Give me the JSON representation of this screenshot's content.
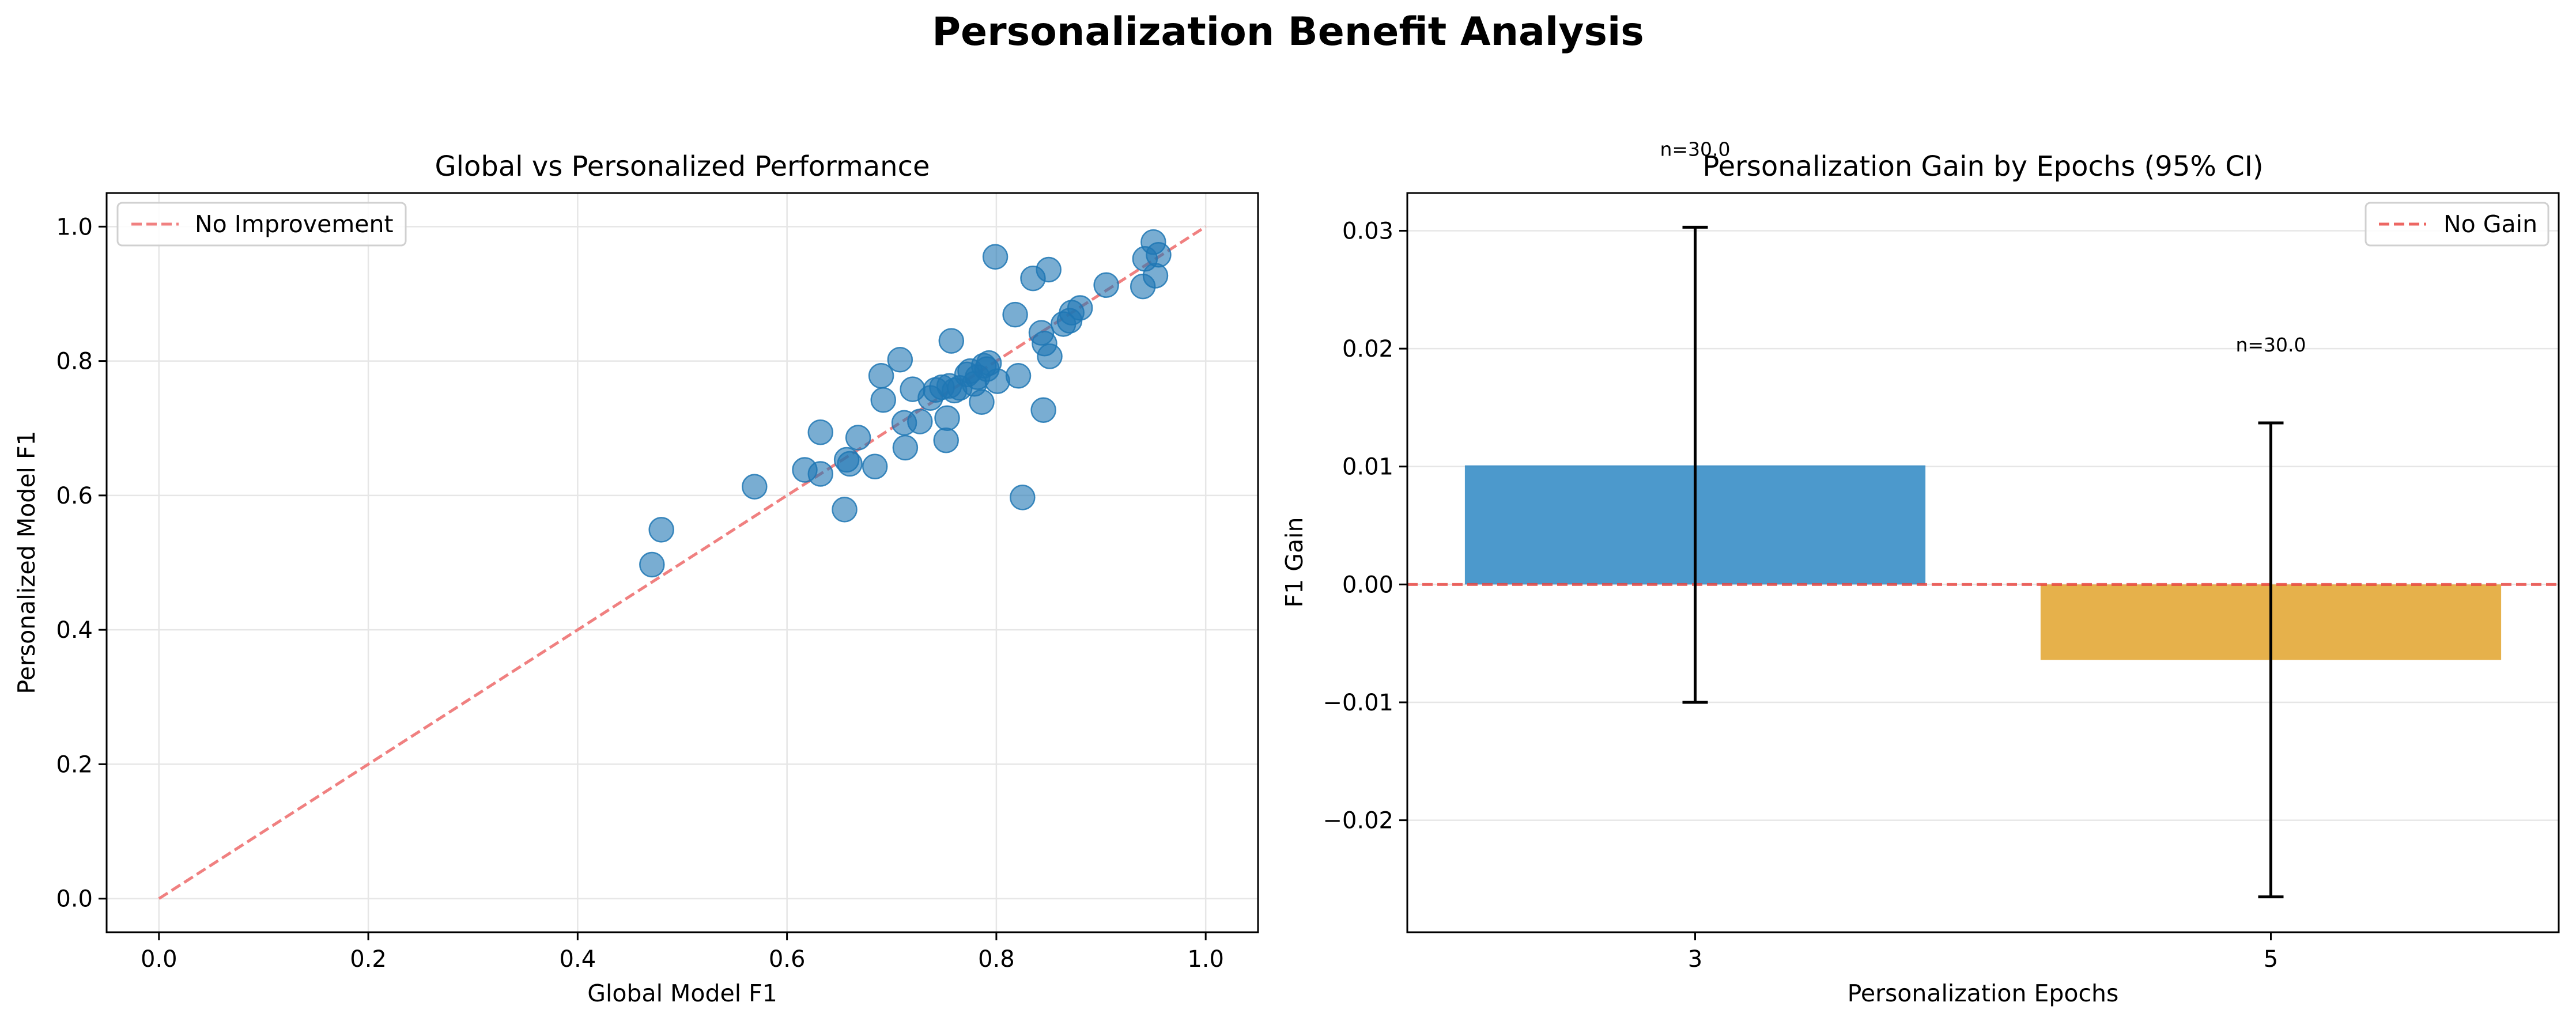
{
  "figure": {
    "title": "Personalization Benefit Analysis"
  },
  "chart_data": [
    {
      "type": "scatter",
      "title": "Global vs Personalized Performance",
      "xlabel": "Global Model F1",
      "ylabel": "Personalized Model F1",
      "xlim": [
        -0.05,
        1.05
      ],
      "ylim": [
        -0.05,
        1.05
      ],
      "xticks": [
        "0.0",
        "0.2",
        "0.4",
        "0.6",
        "0.8",
        "1.0"
      ],
      "yticks": [
        "0.0",
        "0.2",
        "0.4",
        "0.6",
        "0.8",
        "1.0"
      ],
      "grid": true,
      "legend": {
        "position": "upper-left",
        "entries": [
          "No Improvement"
        ]
      },
      "reference_line": {
        "label": "No Improvement",
        "from": [
          0,
          0
        ],
        "to": [
          1,
          1
        ],
        "color": "#f08080",
        "style": "dashed"
      },
      "point_color": "#1f77b4",
      "points": [
        {
          "x": 0.471,
          "y": 0.497
        },
        {
          "x": 0.48,
          "y": 0.549
        },
        {
          "x": 0.569,
          "y": 0.613
        },
        {
          "x": 0.617,
          "y": 0.638
        },
        {
          "x": 0.632,
          "y": 0.632
        },
        {
          "x": 0.632,
          "y": 0.694
        },
        {
          "x": 0.655,
          "y": 0.579
        },
        {
          "x": 0.657,
          "y": 0.653
        },
        {
          "x": 0.66,
          "y": 0.647
        },
        {
          "x": 0.668,
          "y": 0.686
        },
        {
          "x": 0.684,
          "y": 0.643
        },
        {
          "x": 0.69,
          "y": 0.778
        },
        {
          "x": 0.692,
          "y": 0.742
        },
        {
          "x": 0.708,
          "y": 0.802
        },
        {
          "x": 0.712,
          "y": 0.708
        },
        {
          "x": 0.713,
          "y": 0.671
        },
        {
          "x": 0.72,
          "y": 0.758
        },
        {
          "x": 0.727,
          "y": 0.71
        },
        {
          "x": 0.737,
          "y": 0.745
        },
        {
          "x": 0.742,
          "y": 0.757
        },
        {
          "x": 0.748,
          "y": 0.761
        },
        {
          "x": 0.752,
          "y": 0.682
        },
        {
          "x": 0.753,
          "y": 0.715
        },
        {
          "x": 0.755,
          "y": 0.763
        },
        {
          "x": 0.757,
          "y": 0.83
        },
        {
          "x": 0.76,
          "y": 0.756
        },
        {
          "x": 0.765,
          "y": 0.76
        },
        {
          "x": 0.772,
          "y": 0.78
        },
        {
          "x": 0.775,
          "y": 0.785
        },
        {
          "x": 0.779,
          "y": 0.766
        },
        {
          "x": 0.782,
          "y": 0.776
        },
        {
          "x": 0.786,
          "y": 0.739
        },
        {
          "x": 0.788,
          "y": 0.793
        },
        {
          "x": 0.791,
          "y": 0.788
        },
        {
          "x": 0.793,
          "y": 0.797
        },
        {
          "x": 0.799,
          "y": 0.955
        },
        {
          "x": 0.801,
          "y": 0.77
        },
        {
          "x": 0.818,
          "y": 0.869
        },
        {
          "x": 0.821,
          "y": 0.778
        },
        {
          "x": 0.825,
          "y": 0.597
        },
        {
          "x": 0.835,
          "y": 0.923
        },
        {
          "x": 0.843,
          "y": 0.842
        },
        {
          "x": 0.845,
          "y": 0.727
        },
        {
          "x": 0.846,
          "y": 0.826
        },
        {
          "x": 0.85,
          "y": 0.936
        },
        {
          "x": 0.851,
          "y": 0.807
        },
        {
          "x": 0.864,
          "y": 0.855
        },
        {
          "x": 0.87,
          "y": 0.86
        },
        {
          "x": 0.872,
          "y": 0.872
        },
        {
          "x": 0.88,
          "y": 0.879
        },
        {
          "x": 0.905,
          "y": 0.913
        },
        {
          "x": 0.94,
          "y": 0.911
        },
        {
          "x": 0.942,
          "y": 0.952
        },
        {
          "x": 0.95,
          "y": 0.977
        },
        {
          "x": 0.952,
          "y": 0.927
        },
        {
          "x": 0.955,
          "y": 0.958
        }
      ]
    },
    {
      "type": "bar",
      "title": "Personalization Gain by Epochs (95% CI)",
      "xlabel": "Personalization Epochs",
      "ylabel": "F1 Gain",
      "categories": [
        "3",
        "5"
      ],
      "values": [
        0.0101,
        -0.0064
      ],
      "ci_low": [
        -0.01,
        -0.0265
      ],
      "ci_high": [
        0.0303,
        0.0137
      ],
      "colors": [
        "#1f7fbf",
        "#e09d1e"
      ],
      "annotations": [
        "n=30.0",
        "n=30.0"
      ],
      "ylim": [
        -0.0295,
        0.0332
      ],
      "yticks": [
        {
          "value": -0.02,
          "label": "−0.02"
        },
        {
          "value": -0.01,
          "label": "−0.01"
        },
        {
          "value": 0.0,
          "label": "0.00"
        },
        {
          "value": 0.01,
          "label": "0.01"
        },
        {
          "value": 0.02,
          "label": "0.02"
        },
        {
          "value": 0.03,
          "label": "0.03"
        }
      ],
      "grid": "y",
      "legend": {
        "position": "upper-right",
        "entries": [
          "No Gain"
        ]
      },
      "reference_line": {
        "label": "No Gain",
        "y": 0,
        "color": "#e8413c",
        "style": "dashed"
      }
    }
  ]
}
